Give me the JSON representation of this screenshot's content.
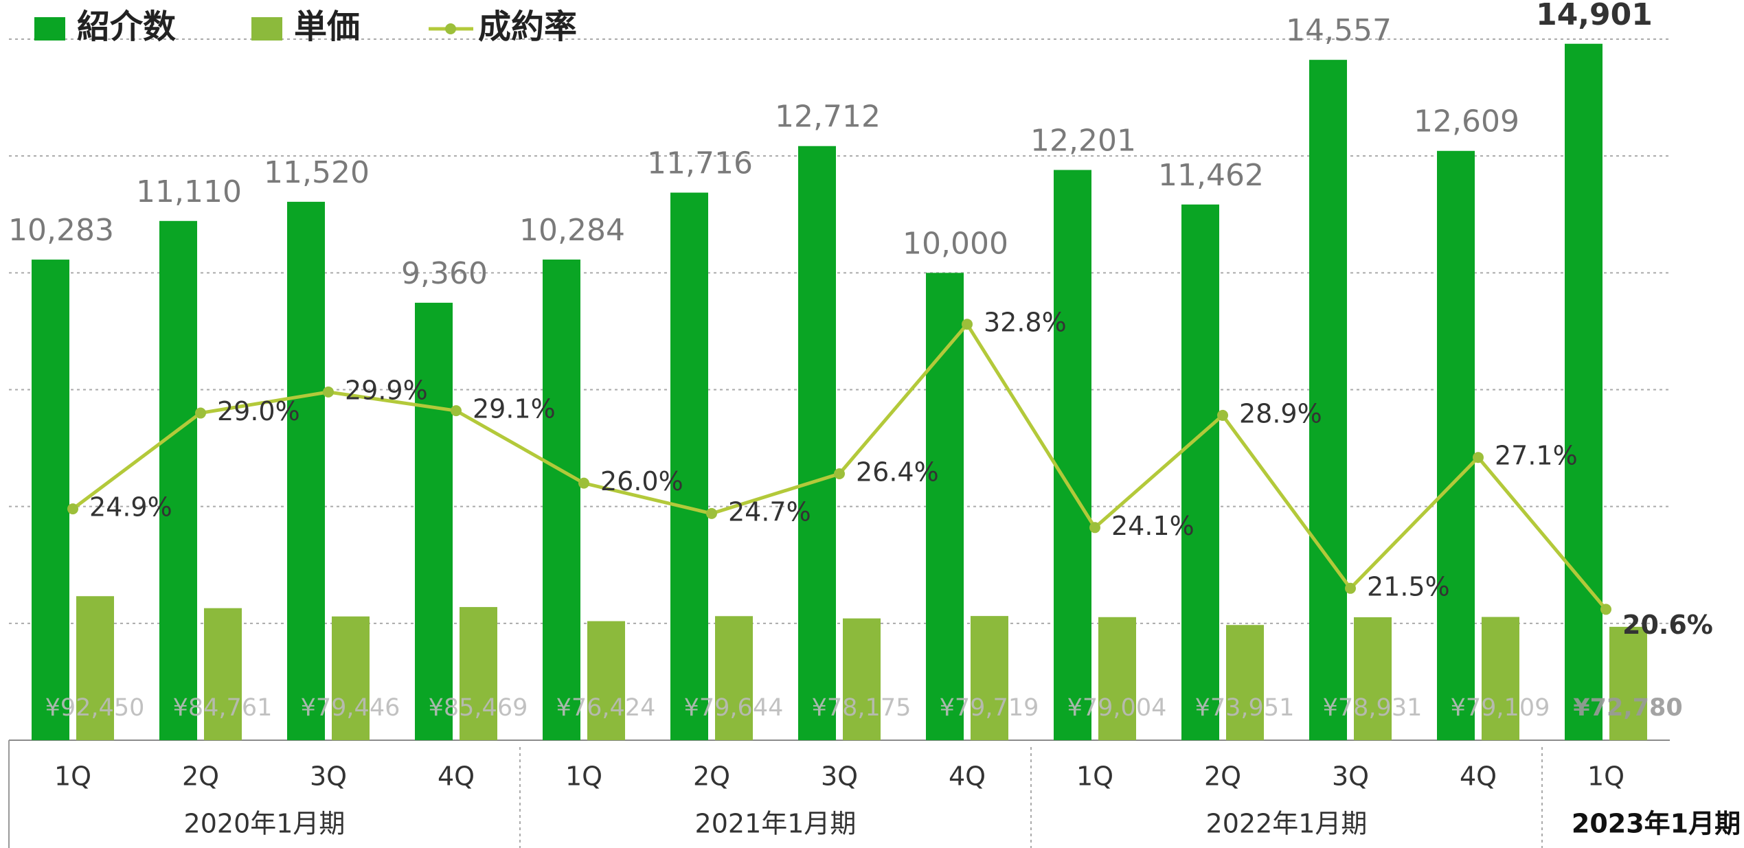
{
  "chart_data": {
    "type": "bar-line",
    "groups": [
      {
        "label": "2020年1月期",
        "categories": [
          "1Q",
          "2Q",
          "3Q",
          "4Q"
        ]
      },
      {
        "label": "2021年1月期",
        "categories": [
          "1Q",
          "2Q",
          "3Q",
          "4Q"
        ]
      },
      {
        "label": "2022年1月期",
        "categories": [
          "1Q",
          "2Q",
          "3Q",
          "4Q"
        ]
      },
      {
        "label": "2023年1月期",
        "categories": [
          "1Q"
        ]
      }
    ],
    "series": [
      {
        "name": "紹介数",
        "type": "bar",
        "color": "#0aa524",
        "axis": "y",
        "values": [
          10283,
          11110,
          11520,
          9360,
          10284,
          11716,
          12712,
          10000,
          12201,
          11462,
          14557,
          12609,
          14901
        ],
        "value_labels": [
          "10,283",
          "11,110",
          "11,520",
          "9,360",
          "10,284",
          "11,716",
          "12,712",
          "10,000",
          "12,201",
          "11,462",
          "14,557",
          "12,609",
          "14,901"
        ]
      },
      {
        "name": "単価",
        "type": "bar",
        "color": "#8cba3c",
        "axis": "y2",
        "values": [
          92450,
          84761,
          79446,
          85469,
          76424,
          79644,
          78175,
          79719,
          79004,
          73951,
          78931,
          79109,
          72780
        ],
        "value_labels": [
          "¥92,450",
          "¥84,761",
          "¥79,446",
          "¥85,469",
          "¥76,424",
          "¥79,644",
          "¥78,175",
          "¥79,719",
          "¥79,004",
          "¥73,951",
          "¥78,931",
          "¥79,109",
          "¥72,780"
        ]
      },
      {
        "name": "成約率",
        "type": "line",
        "color": "#b3c93a",
        "axis": "y3",
        "values": [
          24.9,
          29.0,
          29.9,
          29.1,
          26.0,
          24.7,
          26.4,
          32.8,
          24.1,
          28.9,
          21.5,
          27.1,
          20.6
        ],
        "value_labels": [
          "24.9%",
          "29.0%",
          "29.9%",
          "29.1%",
          "26.0%",
          "24.7%",
          "26.4%",
          "32.8%",
          "24.1%",
          "28.9%",
          "21.5%",
          "27.1%",
          "20.6%"
        ]
      }
    ],
    "ylim": [
      0,
      15000
    ],
    "yticks": [
      0,
      2500,
      5000,
      7500,
      10000,
      12500,
      15000
    ],
    "y2lim": [
      0,
      450000
    ],
    "y3lim": [
      15,
      45
    ],
    "grid": true
  }
}
